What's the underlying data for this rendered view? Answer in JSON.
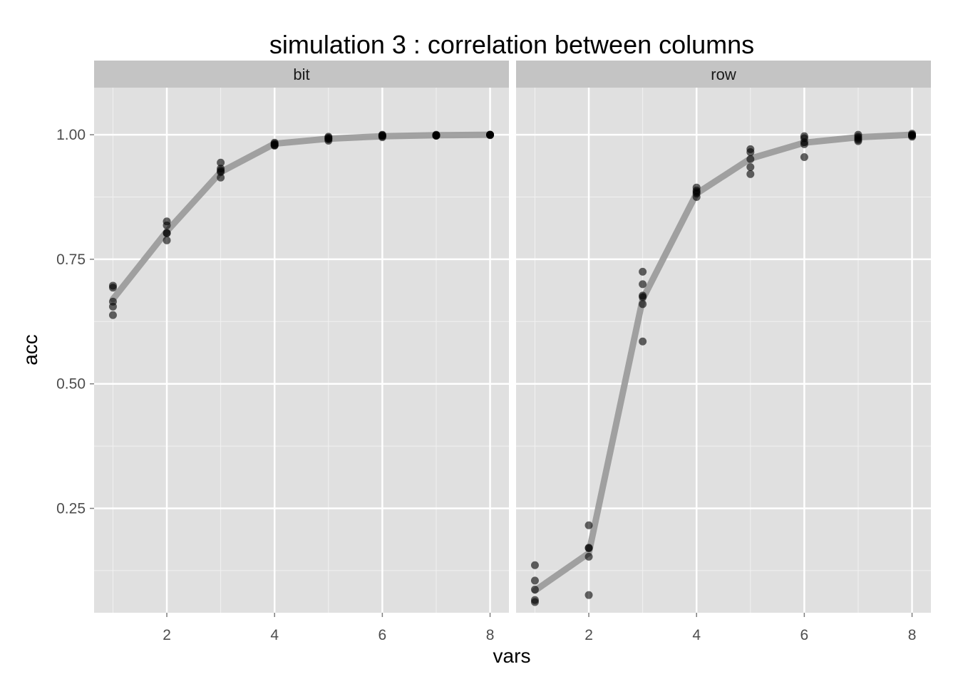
{
  "chart_data": {
    "type": "scatter",
    "title": "simulation 3 : correlation between columns",
    "xlabel": "vars",
    "ylabel": "acc",
    "xlim": [
      0.65,
      8.35
    ],
    "ylim": [
      0.0405,
      1.0945
    ],
    "x_ticks": [
      2,
      4,
      6,
      8
    ],
    "x_tick_labels": [
      "2",
      "4",
      "6",
      "8"
    ],
    "y_ticks": [
      0.25,
      0.5,
      0.75,
      1.0
    ],
    "y_tick_labels": [
      "0.25",
      "0.50",
      "0.75",
      "1.00"
    ],
    "grid": true,
    "legend": "none",
    "point_color": "#000000",
    "line_color": "#999999",
    "panel_background": "#e0e0e0",
    "strip_background": "#c4c4c4",
    "facets": [
      {
        "label": "bit",
        "smooth_line": {
          "x": [
            1,
            2,
            3,
            4,
            5,
            6,
            7,
            8
          ],
          "y": [
            0.67,
            0.806,
            0.925,
            0.982,
            0.992,
            0.997,
            0.999,
            1.0
          ]
        },
        "points": {
          "x": [
            1,
            1,
            1,
            1,
            1,
            2,
            2,
            2,
            2,
            2,
            3,
            3,
            3,
            3,
            3,
            4,
            4,
            4,
            4,
            4,
            5,
            5,
            5,
            5,
            5,
            6,
            6,
            6,
            6,
            6,
            7,
            7,
            7,
            7,
            7,
            8,
            8,
            8,
            8,
            8
          ],
          "y": [
            0.697,
            0.693,
            0.665,
            0.655,
            0.638,
            0.826,
            0.818,
            0.803,
            0.802,
            0.788,
            0.944,
            0.932,
            0.928,
            0.925,
            0.914,
            0.984,
            0.982,
            0.98,
            0.979,
            0.978,
            0.996,
            0.994,
            0.992,
            0.991,
            0.988,
            1.0,
            0.999,
            0.998,
            0.997,
            0.995,
            1.0,
            0.999,
            0.999,
            0.998,
            0.998,
            1.0,
            1.0,
            1.0,
            1.0,
            0.999
          ]
        }
      },
      {
        "label": "row",
        "smooth_line": {
          "x": [
            1,
            2,
            3,
            4,
            5,
            6,
            7,
            8
          ],
          "y": [
            0.085,
            0.16,
            0.67,
            0.882,
            0.952,
            0.984,
            0.995,
            1.0
          ]
        },
        "points": {
          "x": [
            1,
            1,
            1,
            1,
            1,
            2,
            2,
            2,
            2,
            2,
            3,
            3,
            3,
            3,
            3,
            3,
            4,
            4,
            4,
            4,
            4,
            5,
            5,
            5,
            5,
            5,
            6,
            6,
            6,
            6,
            6,
            7,
            7,
            7,
            7,
            7,
            8,
            8,
            8,
            8,
            8
          ],
          "y": [
            0.136,
            0.105,
            0.087,
            0.066,
            0.062,
            0.216,
            0.171,
            0.17,
            0.153,
            0.076,
            0.725,
            0.7,
            0.677,
            0.674,
            0.66,
            0.585,
            0.894,
            0.888,
            0.885,
            0.882,
            0.875,
            0.971,
            0.965,
            0.951,
            0.935,
            0.921,
            0.997,
            0.993,
            0.985,
            0.981,
            0.955,
            1.0,
            0.996,
            0.993,
            0.99,
            0.987,
            1.002,
            1.0,
            0.999,
            0.998,
            0.996
          ]
        }
      }
    ]
  }
}
